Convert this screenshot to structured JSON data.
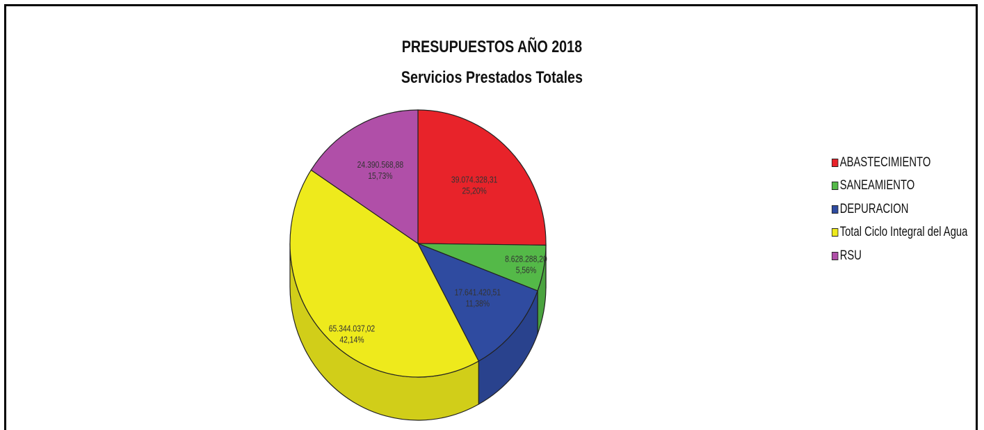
{
  "chart_data": {
    "type": "pie",
    "title": "PRESUPUESTOS AÑO 2018",
    "subtitle": "Servicios Prestados Totales",
    "three_d": true,
    "legend_position": "right",
    "series": [
      {
        "name": "ABASTECIMIENTO",
        "value": 39074328.31,
        "value_label": "39.074.328,31",
        "percent_label": "25,20%",
        "color": "#e8232a"
      },
      {
        "name": "SANEAMIENTO",
        "value": 8628288.2,
        "value_label": "8.628.288,20",
        "percent_label": "5,56%",
        "color": "#54b948"
      },
      {
        "name": "DEPURACION",
        "value": 17641420.51,
        "value_label": "17.641.420,51",
        "percent_label": "11,38%",
        "color": "#2f4ba0"
      },
      {
        "name": "Total Ciclo Integral del Agua",
        "value": 65344037.02,
        "value_label": "65.344.037,02",
        "percent_label": "42,14%",
        "color": "#eeea1c"
      },
      {
        "name": "RSU",
        "value": 24390568.88,
        "value_label": "24.390.568,88",
        "percent_label": "15,73%",
        "color": "#b04fa8"
      }
    ]
  }
}
